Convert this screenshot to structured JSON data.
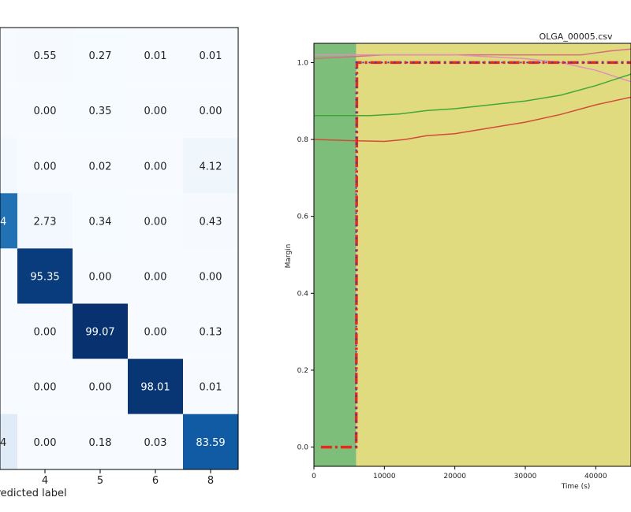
{
  "chart_data": [
    {
      "type": "heatmap",
      "title": "",
      "xlabel": "Predicted label",
      "ylabel": "",
      "x_ticks": [
        "4",
        "5",
        "6",
        "8"
      ],
      "colormap": "Blues",
      "value_range": [
        0,
        100
      ],
      "visible_partial_column": [
        "",
        "",
        "",
        "4",
        "",
        "",
        "",
        "4"
      ],
      "rows": [
        [
          0.55,
          0.27,
          0.01,
          0.01
        ],
        [
          0.0,
          0.35,
          0.0,
          0.0
        ],
        [
          0.0,
          0.02,
          0.0,
          4.12
        ],
        [
          2.73,
          0.34,
          0.0,
          0.43
        ],
        [
          95.35,
          0.0,
          0.0,
          0.0
        ],
        [
          0.0,
          99.07,
          0.0,
          0.13
        ],
        [
          0.0,
          0.0,
          98.01,
          0.01
        ],
        [
          0.0,
          0.18,
          0.03,
          83.59
        ]
      ],
      "partial_column_shading": [
        0.002,
        0.002,
        0.02,
        0.75,
        0.002,
        0.002,
        0.002,
        0.12
      ]
    },
    {
      "type": "line",
      "title": "OLGA_00005.csv",
      "xlabel": "Time (s)",
      "ylabel": "Margin",
      "xlim": [
        0,
        45000
      ],
      "ylim": [
        -0.05,
        1.05
      ],
      "x_ticks": [
        0,
        10000,
        20000,
        30000,
        40000
      ],
      "y_ticks": [
        0.0,
        0.2,
        0.4,
        0.6,
        0.8,
        1.0
      ],
      "y_tick_labels": [
        "0.0",
        "0.2",
        "0.4",
        "0.6",
        "0.8",
        "1.0"
      ],
      "x_tick_labels": [
        "0",
        "10000",
        "20000",
        "30000",
        "40000"
      ],
      "regions": [
        {
          "x0": 0,
          "x1": 6000,
          "color": "#7dbf7a"
        },
        {
          "x0": 6000,
          "x1": 45000,
          "color": "#dfdb7e"
        }
      ],
      "series": [
        {
          "color": "#d4707a",
          "style": "solid",
          "x": [
            0,
            5000,
            10000,
            20000,
            30000,
            38000,
            42000,
            45000
          ],
          "y": [
            1.01,
            1.015,
            1.02,
            1.02,
            1.02,
            1.02,
            1.03,
            1.035
          ]
        },
        {
          "color": "#e08fc0",
          "style": "solid",
          "x": [
            0,
            5000,
            10000,
            20000,
            30000,
            35000,
            40000,
            45000
          ],
          "y": [
            1.02,
            1.02,
            1.02,
            1.02,
            1.01,
            1.0,
            0.98,
            0.95
          ]
        },
        {
          "color": "#3fa83a",
          "style": "solid",
          "x": [
            0,
            5000,
            8000,
            12000,
            16000,
            20000,
            25000,
            30000,
            35000,
            40000,
            45000
          ],
          "y": [
            0.862,
            0.862,
            0.862,
            0.866,
            0.875,
            0.88,
            0.89,
            0.9,
            0.915,
            0.94,
            0.97
          ]
        },
        {
          "color": "#d24b3a",
          "style": "solid",
          "x": [
            0,
            5000,
            10000,
            13000,
            16000,
            20000,
            25000,
            30000,
            35000,
            40000,
            45000
          ],
          "y": [
            0.8,
            0.797,
            0.795,
            0.8,
            0.81,
            0.815,
            0.83,
            0.845,
            0.865,
            0.89,
            0.91
          ]
        },
        {
          "color": "#e82a1e",
          "style": "dashdot",
          "x": [
            1000,
            5800,
            6000,
            6100,
            45000
          ],
          "y": [
            0.0,
            0.0,
            0.0,
            1.0,
            1.0
          ]
        },
        {
          "color": "#2a3ad0",
          "style": "dotted",
          "x": [
            6000,
            6000,
            45000
          ],
          "y": [
            0.0,
            1.0,
            1.0
          ]
        }
      ]
    }
  ]
}
